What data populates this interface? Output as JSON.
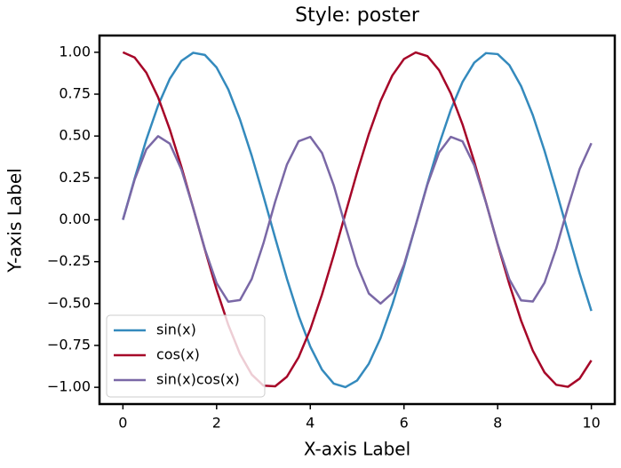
{
  "chart_data": {
    "type": "line",
    "title": "Style: poster",
    "xlabel": "X-axis Label",
    "ylabel": "Y-axis Label",
    "x": [
      0,
      0.25,
      0.5,
      0.75,
      1,
      1.25,
      1.5,
      1.75,
      2,
      2.25,
      2.5,
      2.75,
      3,
      3.25,
      3.5,
      3.75,
      4,
      4.25,
      4.5,
      4.75,
      5,
      5.25,
      5.5,
      5.75,
      6,
      6.25,
      6.5,
      6.75,
      7,
      7.25,
      7.5,
      7.75,
      8,
      8.25,
      8.5,
      8.75,
      9,
      9.25,
      9.5,
      9.75,
      10
    ],
    "series": [
      {
        "name": "sin(x)",
        "color": "#348ABD",
        "values": [
          0,
          0.247,
          0.479,
          0.682,
          0.841,
          0.949,
          0.997,
          0.984,
          0.909,
          0.778,
          0.598,
          0.382,
          0.141,
          -0.108,
          -0.351,
          -0.572,
          -0.757,
          -0.895,
          -0.978,
          -0.999,
          -0.959,
          -0.859,
          -0.706,
          -0.508,
          -0.279,
          -0.033,
          0.215,
          0.45,
          0.657,
          0.823,
          0.938,
          0.995,
          0.989,
          0.923,
          0.798,
          0.625,
          0.412,
          0.174,
          -0.075,
          -0.32,
          -0.544
        ]
      },
      {
        "name": "cos(x)",
        "color": "#A60628",
        "values": [
          1,
          0.969,
          0.878,
          0.732,
          0.54,
          0.315,
          0.071,
          -0.178,
          -0.416,
          -0.628,
          -0.801,
          -0.924,
          -0.99,
          -0.994,
          -0.937,
          -0.821,
          -0.654,
          -0.446,
          -0.211,
          0.038,
          0.284,
          0.512,
          0.709,
          0.861,
          0.96,
          0.999,
          0.977,
          0.893,
          0.754,
          0.569,
          0.347,
          0.104,
          -0.146,
          -0.385,
          -0.602,
          -0.781,
          -0.911,
          -0.985,
          -0.997,
          -0.948,
          -0.839
        ]
      },
      {
        "name": "sin(x)cos(x)",
        "color": "#7A68A6",
        "values": [
          0,
          0.24,
          0.421,
          0.499,
          0.455,
          0.299,
          0.071,
          -0.175,
          -0.378,
          -0.489,
          -0.479,
          -0.353,
          -0.14,
          0.108,
          0.329,
          0.469,
          0.495,
          0.399,
          0.206,
          -0.038,
          -0.272,
          -0.44,
          -0.5,
          -0.438,
          -0.268,
          -0.033,
          0.21,
          0.402,
          0.495,
          0.468,
          0.325,
          0.103,
          -0.144,
          -0.356,
          -0.481,
          -0.488,
          -0.376,
          -0.171,
          0.075,
          0.303,
          0.457
        ]
      }
    ],
    "xlim": [
      -0.5,
      10.5
    ],
    "xticks": [
      0,
      2,
      4,
      6,
      8,
      10
    ],
    "ylim": [
      -1.1,
      1.1
    ],
    "yticks": [
      {
        "value": -1,
        "label": "−1.00"
      },
      {
        "value": -0.75,
        "label": "−0.75"
      },
      {
        "value": -0.5,
        "label": "−0.50"
      },
      {
        "value": -0.25,
        "label": "−0.25"
      },
      {
        "value": 0,
        "label": "0.00"
      },
      {
        "value": 0.25,
        "label": "0.25"
      },
      {
        "value": 0.5,
        "label": "0.50"
      },
      {
        "value": 0.75,
        "label": "0.75"
      },
      {
        "value": 1,
        "label": "1.00"
      }
    ],
    "grid": false,
    "legend": "lower left"
  }
}
